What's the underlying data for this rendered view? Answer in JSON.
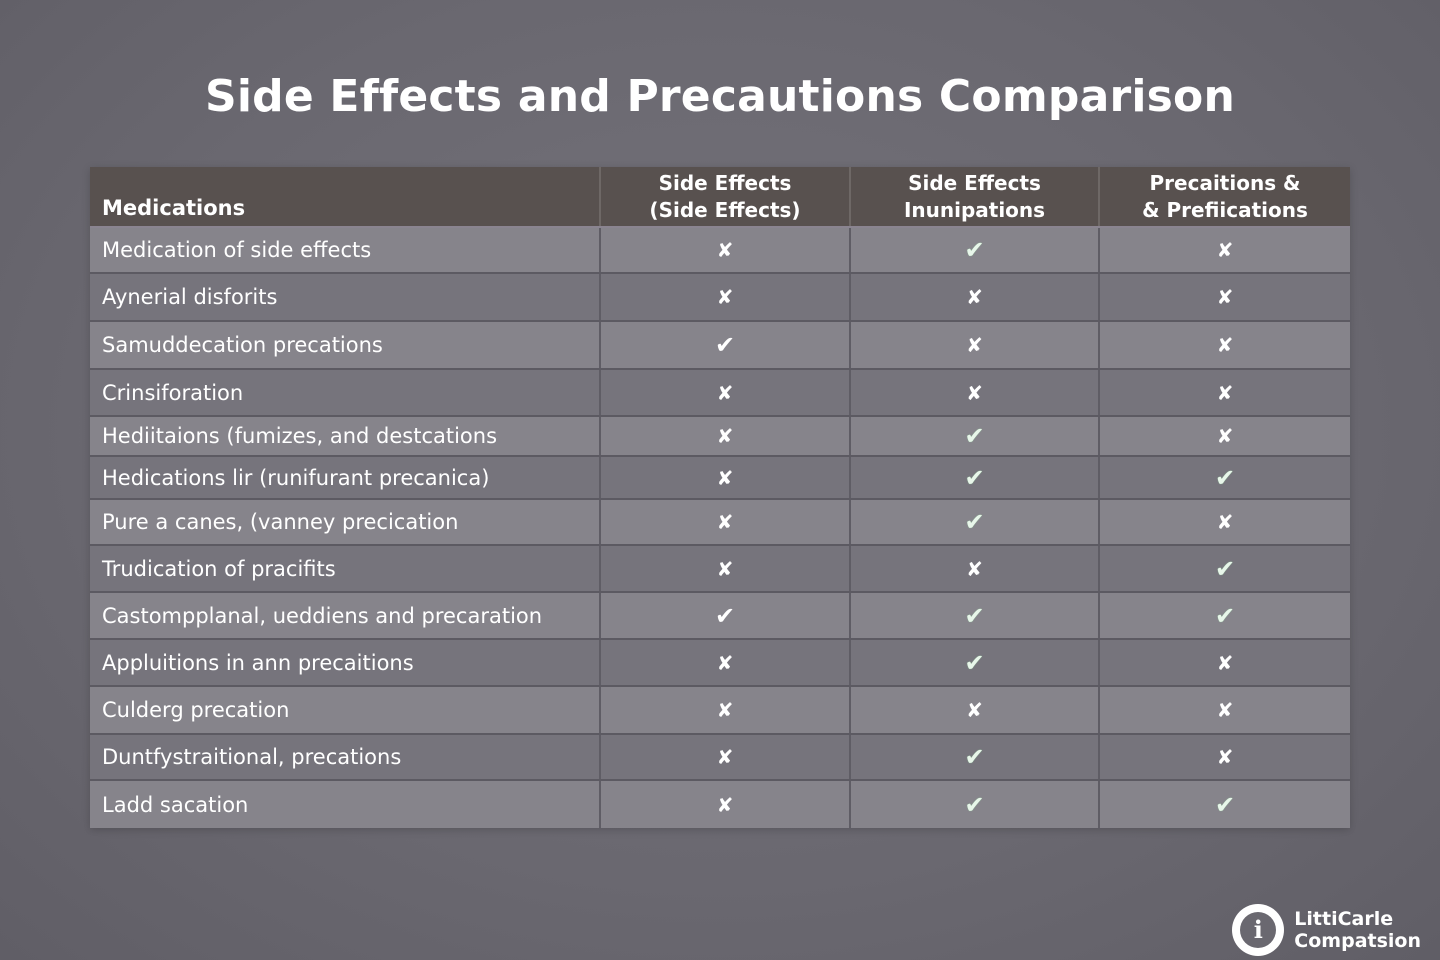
{
  "title": "Side Effects and Precautions Comparison",
  "table": {
    "headers": [
      {
        "lines": [
          "Medications"
        ]
      },
      {
        "lines": [
          "Side Effects",
          "(Side Effects)"
        ]
      },
      {
        "lines": [
          "Side Effects",
          "Inunipations"
        ]
      },
      {
        "lines": [
          "Precaitions &",
          "& Prefiications"
        ]
      }
    ],
    "rows": [
      {
        "name": "Medication of side effects",
        "marks": [
          "✘",
          "✔",
          "✘"
        ]
      },
      {
        "name": "Aynerial disforits",
        "marks": [
          "✘",
          "✘",
          "✘"
        ]
      },
      {
        "name": "Samuddecation precations",
        "marks": [
          "✔",
          "✘",
          "✘"
        ]
      },
      {
        "name": "Crinsiforation",
        "marks": [
          "✘",
          "✘",
          "✘"
        ]
      },
      {
        "name": "Hediitaions (fumizes, and destcations",
        "marks": [
          "✘",
          "✔",
          "✘"
        ]
      },
      {
        "name": "Hedications lir (runifurant precanica)",
        "marks": [
          "✘",
          "✔",
          "✔"
        ]
      },
      {
        "name": "Pure a canes, (vanney precication",
        "marks": [
          "✘",
          "✔",
          "✘"
        ]
      },
      {
        "name": "Trudication of pracifits",
        "marks": [
          "✘",
          "✘",
          "✔"
        ]
      },
      {
        "name": "Castompplanal, ueddiens and precaration",
        "marks": [
          "✔",
          "✔",
          "✔"
        ]
      },
      {
        "name": "Appluitions in ann precaitions",
        "marks": [
          "✘",
          "✔",
          "✘"
        ]
      },
      {
        "name": "Culderg precation",
        "marks": [
          "✘",
          "✘",
          "✘"
        ]
      },
      {
        "name": "Duntfystraitional, precations",
        "marks": [
          "✘",
          "✔",
          "✘"
        ]
      },
      {
        "name": "Ladd sacation",
        "marks": [
          "✘",
          "✔",
          "✔"
        ]
      }
    ]
  },
  "logo": {
    "icon": "info-magnifier-icon",
    "glyph": "i",
    "line1": "LittiCarle",
    "line2": "Compatsion"
  }
}
